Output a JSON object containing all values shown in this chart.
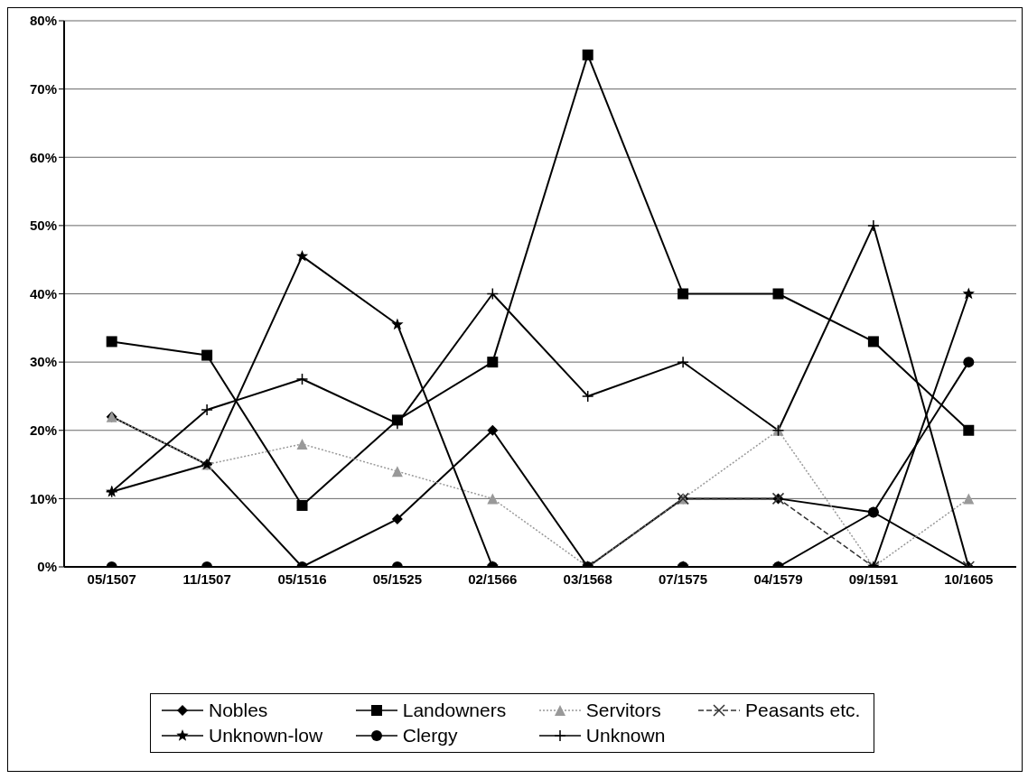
{
  "chart_data": {
    "type": "line",
    "categories": [
      "05/1507",
      "11/1507",
      "05/1516",
      "05/1525",
      "02/1566",
      "03/1568",
      "07/1575",
      "04/1579",
      "09/1591",
      "10/1605"
    ],
    "series": [
      {
        "name": "Nobles",
        "color": "#000000",
        "marker": "diamond",
        "line_style": "solid",
        "values": [
          22,
          15,
          0,
          7,
          20,
          0,
          10,
          10,
          8,
          0
        ]
      },
      {
        "name": "Landowners",
        "color": "#000000",
        "marker": "square",
        "line_style": "solid",
        "values": [
          33,
          31,
          9,
          21.5,
          30,
          75,
          40,
          40,
          33,
          20
        ]
      },
      {
        "name": "Servitors",
        "color": "#999999",
        "marker": "triangle",
        "line_style": "dotted",
        "values": [
          22,
          15,
          18,
          14,
          10,
          0,
          10,
          20,
          0,
          10
        ]
      },
      {
        "name": "Peasants etc.",
        "color": "#333333",
        "marker": "cross",
        "line_style": "dashed",
        "values": [
          null,
          null,
          null,
          null,
          null,
          0,
          10,
          10,
          0,
          0
        ]
      },
      {
        "name": "Unknown-low",
        "color": "#000000",
        "marker": "star",
        "line_style": "solid",
        "values": [
          11,
          15,
          45.5,
          35.5,
          0,
          0,
          0,
          0,
          0,
          40
        ]
      },
      {
        "name": "Clergy",
        "color": "#000000",
        "marker": "circle",
        "line_style": "solid",
        "values": [
          0,
          0,
          0,
          0,
          0,
          0,
          0,
          0,
          8,
          30
        ]
      },
      {
        "name": "Unknown",
        "color": "#000000",
        "marker": "plus",
        "line_style": "solid",
        "values": [
          11,
          23,
          27.5,
          21,
          40,
          25,
          30,
          20,
          50,
          0
        ]
      }
    ],
    "ylim": [
      0,
      80
    ],
    "yticks": [
      {
        "value": 0,
        "label": "0%"
      },
      {
        "value": 10,
        "label": "10%"
      },
      {
        "value": 20,
        "label": "20%"
      },
      {
        "value": 30,
        "label": "30%"
      },
      {
        "value": 40,
        "label": "40%"
      },
      {
        "value": 50,
        "label": "50%"
      },
      {
        "value": 60,
        "label": "60%"
      },
      {
        "value": 70,
        "label": "70%"
      },
      {
        "value": 80,
        "label": "80%"
      }
    ],
    "grid": "y",
    "legend": "bottom"
  }
}
